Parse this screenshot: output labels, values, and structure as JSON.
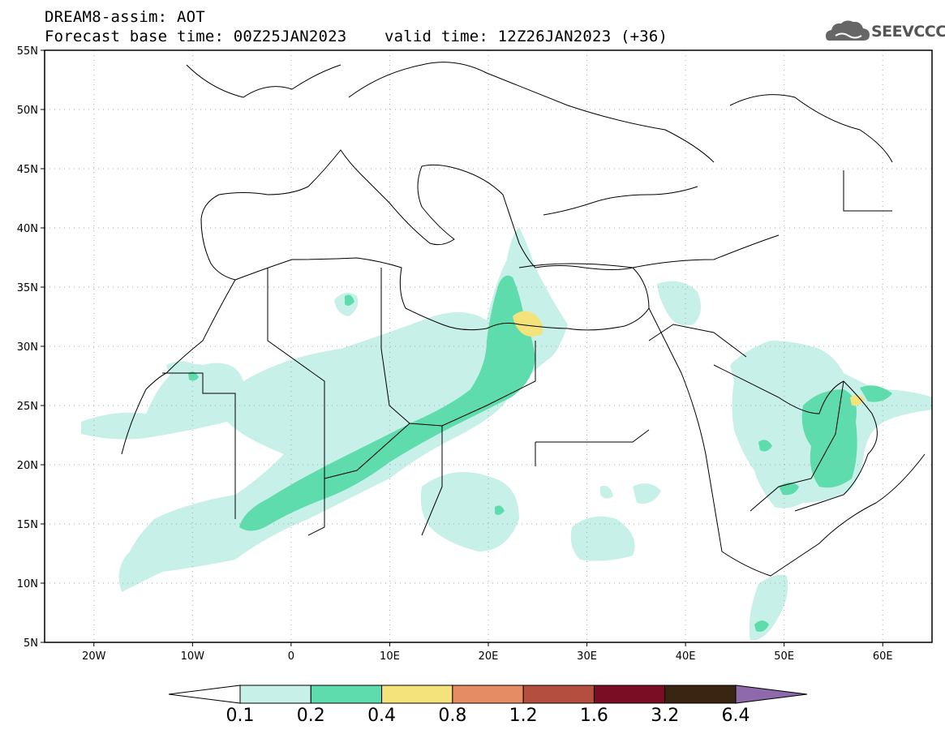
{
  "header": {
    "line1": "DREAM8-assim: AOT",
    "line2": "Forecast base time: 00Z25JAN2023    valid time: 12Z26JAN2023 (+36)",
    "logo_text": "SEEVCCC"
  },
  "map": {
    "lon_range": [
      -25,
      65
    ],
    "lat_range": [
      5,
      55
    ],
    "lon_ticks": [
      {
        "value": -20,
        "label": "20W"
      },
      {
        "value": -10,
        "label": "10W"
      },
      {
        "value": 0,
        "label": "0"
      },
      {
        "value": 10,
        "label": "10E"
      },
      {
        "value": 20,
        "label": "20E"
      },
      {
        "value": 30,
        "label": "30E"
      },
      {
        "value": 40,
        "label": "40E"
      },
      {
        "value": 50,
        "label": "50E"
      },
      {
        "value": 60,
        "label": "60E"
      }
    ],
    "lat_ticks": [
      {
        "value": 55,
        "label": "55N"
      },
      {
        "value": 50,
        "label": "50N"
      },
      {
        "value": 45,
        "label": "45N"
      },
      {
        "value": 40,
        "label": "40N"
      },
      {
        "value": 35,
        "label": "35N"
      },
      {
        "value": 30,
        "label": "30N"
      },
      {
        "value": 25,
        "label": "25N"
      },
      {
        "value": 20,
        "label": "20N"
      },
      {
        "value": 15,
        "label": "15N"
      },
      {
        "value": 10,
        "label": "10N"
      },
      {
        "value": 5,
        "label": "5N"
      }
    ],
    "grid": "dotted"
  },
  "colorbar": {
    "colors": [
      "#ffffff",
      "#c6f0e8",
      "#5fdcad",
      "#f4e27a",
      "#e58c64",
      "#b44e3e",
      "#7a0c24",
      "#3a2412",
      "#8e6aaa"
    ],
    "labels": [
      "0.1",
      "0.2",
      "0.4",
      "0.8",
      "1.2",
      "1.6",
      "3.2",
      "6.4"
    ]
  }
}
